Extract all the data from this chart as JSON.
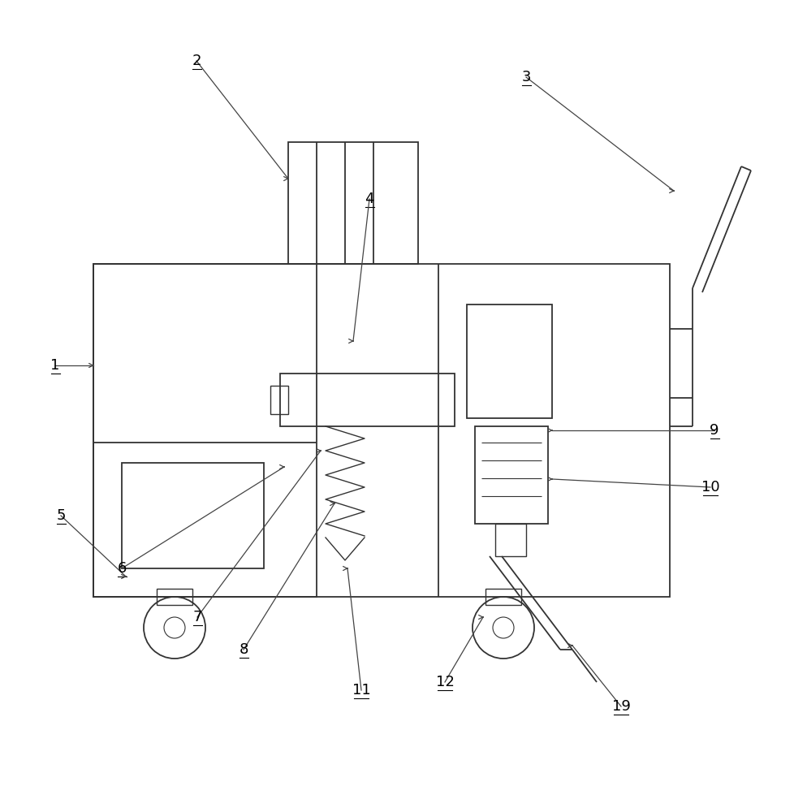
{
  "bg_color": "#ffffff",
  "line_color": "#333333",
  "line_width": 1.3,
  "label_color": "#000000",
  "arrow_color": "#444444",
  "arrow_lw": 0.9,
  "label_fontsize": 13
}
